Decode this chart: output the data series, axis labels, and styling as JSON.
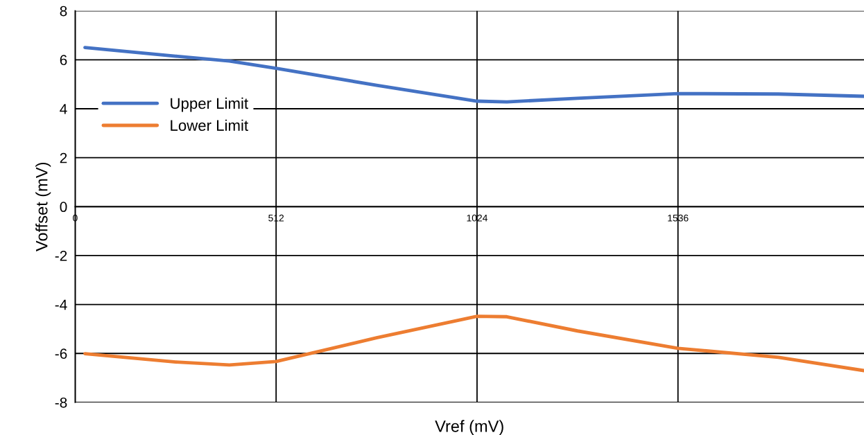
{
  "chart_data": {
    "type": "line",
    "xlabel": "Vref (mV)",
    "ylabel": "Voffset (mV)",
    "xlim": [
      0,
      2010
    ],
    "xticks": [
      0,
      512,
      1024,
      1536
    ],
    "ylim": [
      -8,
      8
    ],
    "yticks": [
      -8,
      -6,
      -4,
      -2,
      0,
      2,
      4,
      6,
      8
    ],
    "grid": true,
    "legend": "top left",
    "marker": "none",
    "line_style": "solid",
    "series": [
      {
        "name": "Upper Limit",
        "color": "#4472c4",
        "x": [
          25,
          256,
          393,
          512,
          768,
          1024,
          1100,
          1280,
          1536,
          1792,
          2010
        ],
        "values": [
          6.5,
          6.15,
          5.95,
          5.65,
          4.96,
          4.31,
          4.28,
          4.43,
          4.62,
          4.6,
          4.51
        ]
      },
      {
        "name": "Lower Limit",
        "color": "#ed7d31",
        "x": [
          25,
          256,
          393,
          512,
          768,
          1024,
          1100,
          1280,
          1536,
          1792,
          2010
        ],
        "values": [
          -6.01,
          -6.35,
          -6.47,
          -6.33,
          -5.36,
          -4.48,
          -4.5,
          -5.08,
          -5.79,
          -6.16,
          -6.7
        ]
      }
    ]
  }
}
